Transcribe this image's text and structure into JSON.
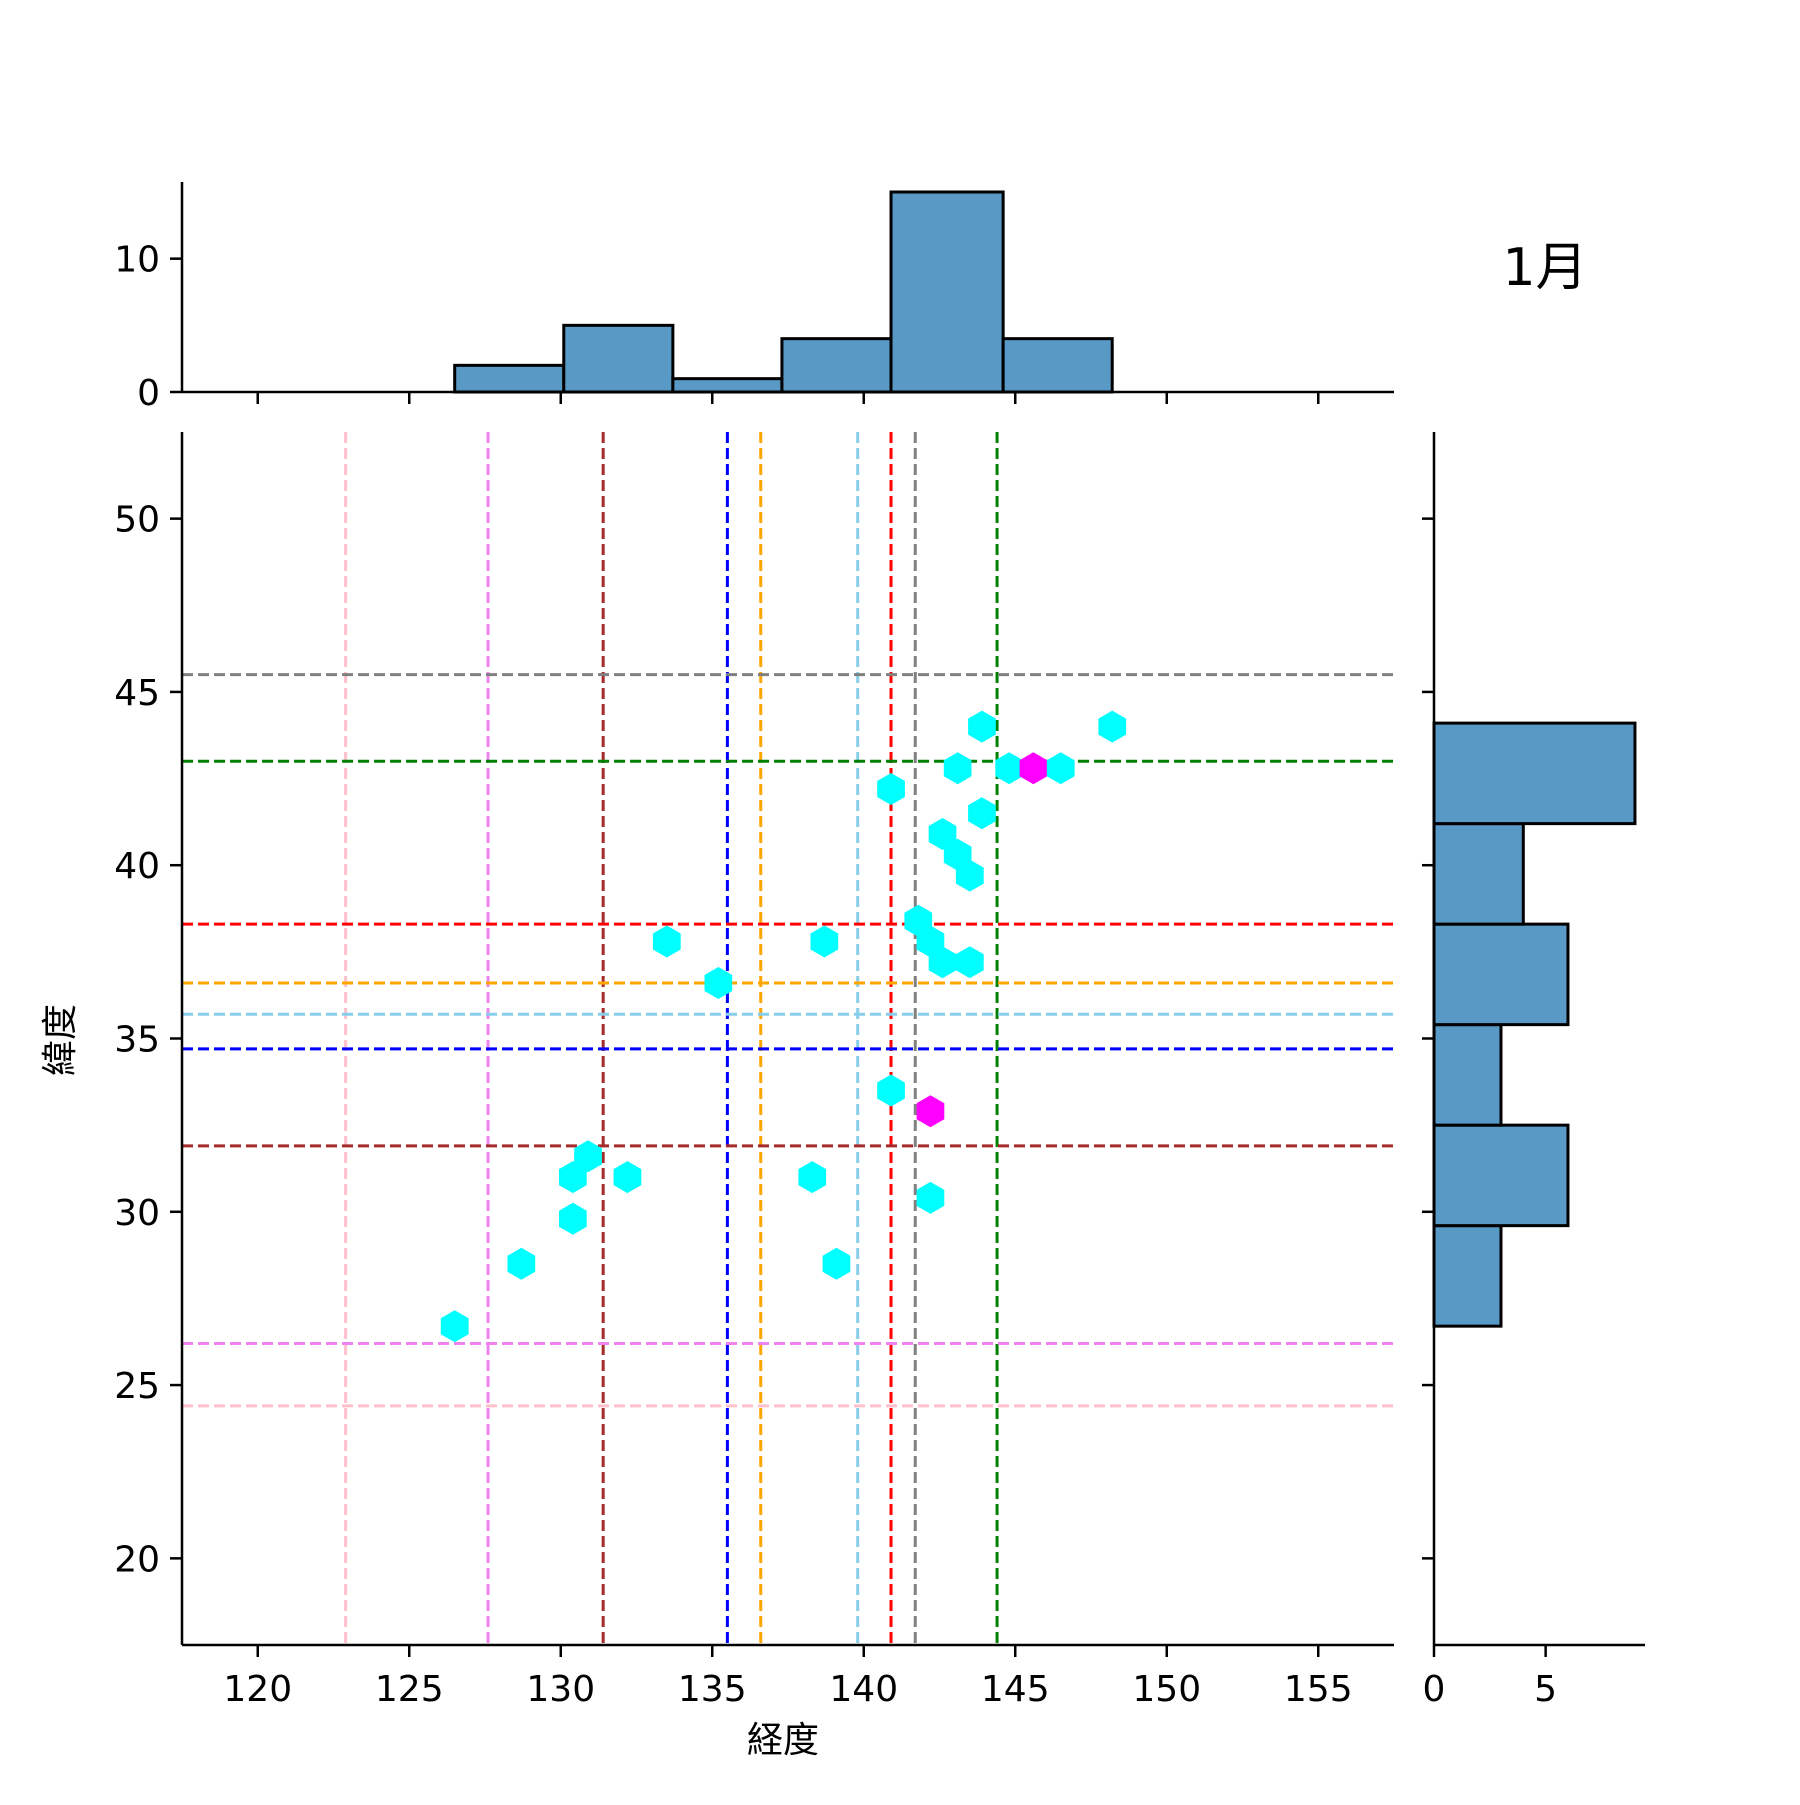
{
  "chart_data": {
    "type": "hexbin-joint",
    "title": "1月",
    "xlabel": "経度",
    "ylabel": "緯度",
    "xlim": [
      117.5,
      157.5
    ],
    "ylim": [
      17.5,
      52.5
    ],
    "xticks": [
      120,
      125,
      130,
      135,
      140,
      145,
      150,
      155
    ],
    "yticks": [
      20,
      25,
      30,
      35,
      40,
      45,
      50
    ],
    "colors": {
      "hex_low": "#00ffff",
      "hex_high": "#ff00ff",
      "hist_fill": "#5899c6",
      "hist_edge": "#000000"
    },
    "hexbins": [
      {
        "x": 126.5,
        "y": 26.7,
        "count": 1
      },
      {
        "x": 128.7,
        "y": 28.5,
        "count": 1
      },
      {
        "x": 130.4,
        "y": 29.8,
        "count": 1
      },
      {
        "x": 130.4,
        "y": 31.0,
        "count": 1
      },
      {
        "x": 130.9,
        "y": 31.6,
        "count": 1
      },
      {
        "x": 132.2,
        "y": 31.0,
        "count": 1
      },
      {
        "x": 133.5,
        "y": 37.8,
        "count": 1
      },
      {
        "x": 135.2,
        "y": 36.6,
        "count": 1
      },
      {
        "x": 138.3,
        "y": 31.0,
        "count": 1
      },
      {
        "x": 138.7,
        "y": 37.8,
        "count": 1
      },
      {
        "x": 139.1,
        "y": 28.5,
        "count": 1
      },
      {
        "x": 140.9,
        "y": 33.5,
        "count": 1
      },
      {
        "x": 140.9,
        "y": 42.2,
        "count": 1
      },
      {
        "x": 141.8,
        "y": 38.4,
        "count": 1
      },
      {
        "x": 142.2,
        "y": 30.4,
        "count": 1
      },
      {
        "x": 142.2,
        "y": 32.9,
        "count": 2
      },
      {
        "x": 142.2,
        "y": 37.8,
        "count": 1
      },
      {
        "x": 142.6,
        "y": 37.2,
        "count": 1
      },
      {
        "x": 142.6,
        "y": 40.9,
        "count": 1
      },
      {
        "x": 143.1,
        "y": 40.3,
        "count": 1
      },
      {
        "x": 143.1,
        "y": 42.8,
        "count": 1
      },
      {
        "x": 143.5,
        "y": 37.2,
        "count": 1
      },
      {
        "x": 143.5,
        "y": 39.7,
        "count": 1
      },
      {
        "x": 143.9,
        "y": 41.5,
        "count": 1
      },
      {
        "x": 143.9,
        "y": 44.0,
        "count": 1
      },
      {
        "x": 144.8,
        "y": 42.8,
        "count": 1
      },
      {
        "x": 145.6,
        "y": 42.8,
        "count": 2
      },
      {
        "x": 146.5,
        "y": 42.8,
        "count": 1
      },
      {
        "x": 148.2,
        "y": 44.0,
        "count": 1
      }
    ],
    "hist_x": {
      "bins": [
        {
          "x0": 126.5,
          "x1": 130.1,
          "count": 2
        },
        {
          "x0": 130.1,
          "x1": 133.7,
          "count": 5
        },
        {
          "x0": 133.7,
          "x1": 137.3,
          "count": 1
        },
        {
          "x0": 137.3,
          "x1": 140.9,
          "count": 4
        },
        {
          "x0": 140.9,
          "x1": 144.6,
          "count": 15
        },
        {
          "x0": 144.6,
          "x1": 148.2,
          "count": 4
        }
      ],
      "ylim": [
        0,
        15.75
      ],
      "yticks": [
        0,
        10
      ]
    },
    "hist_y": {
      "bins": [
        {
          "y0": 26.7,
          "y1": 29.6,
          "count": 3
        },
        {
          "y0": 29.6,
          "y1": 32.5,
          "count": 6
        },
        {
          "y0": 32.5,
          "y1": 35.4,
          "count": 3
        },
        {
          "y0": 35.4,
          "y1": 38.3,
          "count": 6
        },
        {
          "y0": 38.3,
          "y1": 41.2,
          "count": 4
        },
        {
          "y0": 41.2,
          "y1": 44.1,
          "count": 9
        }
      ],
      "xlim": [
        0,
        9.45
      ],
      "xticks": [
        0,
        5
      ]
    },
    "vlines": [
      {
        "x": 122.9,
        "color": "#ffc0cb"
      },
      {
        "x": 127.6,
        "color": "#ee82ee"
      },
      {
        "x": 131.4,
        "color": "#a52a2a"
      },
      {
        "x": 135.5,
        "color": "#0000ff"
      },
      {
        "x": 136.6,
        "color": "#ffa500"
      },
      {
        "x": 139.8,
        "color": "#87ceeb"
      },
      {
        "x": 140.9,
        "color": "#ff0000"
      },
      {
        "x": 141.7,
        "color": "#808080"
      },
      {
        "x": 144.4,
        "color": "#008000"
      }
    ],
    "hlines": [
      {
        "y": 24.4,
        "color": "#ffc0cb"
      },
      {
        "y": 26.2,
        "color": "#ee82ee"
      },
      {
        "y": 31.9,
        "color": "#a52a2a"
      },
      {
        "y": 34.7,
        "color": "#0000ff"
      },
      {
        "y": 35.7,
        "color": "#87ceeb"
      },
      {
        "y": 36.6,
        "color": "#ffa500"
      },
      {
        "y": 38.3,
        "color": "#ff0000"
      },
      {
        "y": 43.0,
        "color": "#008000"
      },
      {
        "y": 45.5,
        "color": "#808080"
      }
    ]
  }
}
